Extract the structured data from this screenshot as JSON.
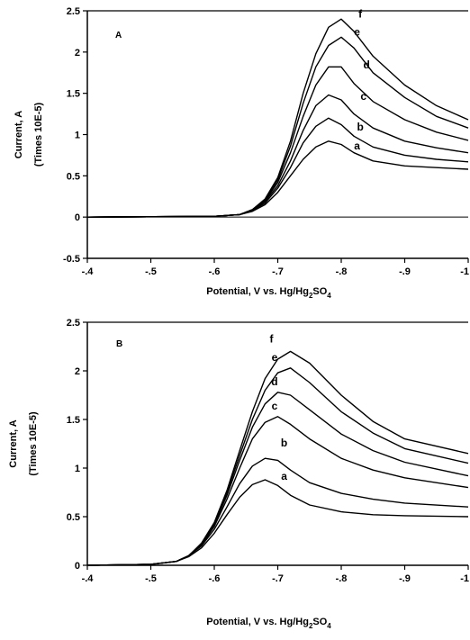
{
  "chart_data": [
    {
      "type": "line",
      "panel_label": "A",
      "xlabel_parts": [
        "Potential,  V vs. Hg/Hg",
        "2",
        "SO",
        "4"
      ],
      "ylabel": [
        "Current, A",
        "(Times 10E-5)"
      ],
      "xlim": [
        -0.4,
        -1.0
      ],
      "ylim": [
        -0.5,
        2.5
      ],
      "x_ticks": [
        -0.4,
        -0.5,
        -0.6,
        -0.7,
        -0.8,
        -0.9,
        -1.0
      ],
      "x_tick_labels": [
        "-.4",
        "-.5",
        "-.6",
        "-.7",
        "-.8",
        "-.9",
        "-1"
      ],
      "y_ticks": [
        -0.5,
        0,
        0.5,
        1,
        1.5,
        2,
        2.5
      ],
      "y_tick_labels": [
        "-0.5",
        "0",
        "0.5",
        "1",
        "1.5",
        "2",
        "2.5"
      ],
      "grid": false,
      "series": [
        {
          "name": "a",
          "x": [
            -0.4,
            -0.6,
            -0.64,
            -0.66,
            -0.68,
            -0.7,
            -0.72,
            -0.74,
            -0.76,
            -0.78,
            -0.8,
            -0.82,
            -0.85,
            -0.9,
            -0.95,
            -1.0
          ],
          "y": [
            0,
            0.01,
            0.03,
            0.07,
            0.15,
            0.3,
            0.5,
            0.7,
            0.85,
            0.92,
            0.88,
            0.78,
            0.68,
            0.62,
            0.6,
            0.58
          ]
        },
        {
          "name": "b",
          "x": [
            -0.4,
            -0.6,
            -0.64,
            -0.66,
            -0.68,
            -0.7,
            -0.72,
            -0.74,
            -0.76,
            -0.78,
            -0.8,
            -0.82,
            -0.85,
            -0.9,
            -0.95,
            -1.0
          ],
          "y": [
            0,
            0.01,
            0.03,
            0.08,
            0.17,
            0.35,
            0.6,
            0.9,
            1.1,
            1.2,
            1.12,
            0.98,
            0.85,
            0.75,
            0.7,
            0.67
          ]
        },
        {
          "name": "c",
          "x": [
            -0.4,
            -0.6,
            -0.64,
            -0.66,
            -0.68,
            -0.7,
            -0.72,
            -0.74,
            -0.76,
            -0.78,
            -0.8,
            -0.82,
            -0.85,
            -0.9,
            -0.95,
            -1.0
          ],
          "y": [
            0,
            0.01,
            0.03,
            0.08,
            0.19,
            0.38,
            0.68,
            1.05,
            1.35,
            1.48,
            1.42,
            1.25,
            1.08,
            0.92,
            0.84,
            0.78
          ]
        },
        {
          "name": "d",
          "x": [
            -0.4,
            -0.6,
            -0.64,
            -0.66,
            -0.68,
            -0.7,
            -0.72,
            -0.74,
            -0.76,
            -0.78,
            -0.8,
            -0.82,
            -0.85,
            -0.9,
            -0.95,
            -1.0
          ],
          "y": [
            0,
            0.01,
            0.03,
            0.09,
            0.2,
            0.42,
            0.78,
            1.22,
            1.6,
            1.82,
            1.82,
            1.62,
            1.4,
            1.18,
            1.03,
            0.93
          ]
        },
        {
          "name": "e",
          "x": [
            -0.4,
            -0.6,
            -0.64,
            -0.66,
            -0.68,
            -0.7,
            -0.72,
            -0.74,
            -0.76,
            -0.78,
            -0.8,
            -0.82,
            -0.85,
            -0.9,
            -0.95,
            -1.0
          ],
          "y": [
            0,
            0.01,
            0.03,
            0.09,
            0.21,
            0.45,
            0.86,
            1.38,
            1.82,
            2.08,
            2.18,
            2.05,
            1.75,
            1.45,
            1.22,
            1.08
          ]
        },
        {
          "name": "f",
          "x": [
            -0.4,
            -0.6,
            -0.64,
            -0.66,
            -0.68,
            -0.7,
            -0.72,
            -0.74,
            -0.76,
            -0.78,
            -0.8,
            -0.82,
            -0.85,
            -0.9,
            -0.95,
            -1.0
          ],
          "y": [
            0,
            0.01,
            0.03,
            0.09,
            0.22,
            0.48,
            0.92,
            1.5,
            1.98,
            2.3,
            2.4,
            2.25,
            1.95,
            1.6,
            1.35,
            1.18
          ]
        }
      ],
      "label_points": [
        {
          "name": "a",
          "x": -0.825,
          "y": 0.82
        },
        {
          "name": "b",
          "x": -0.83,
          "y": 1.05
        },
        {
          "name": "c",
          "x": -0.835,
          "y": 1.42
        },
        {
          "name": "d",
          "x": -0.84,
          "y": 1.8
        },
        {
          "name": "e",
          "x": -0.825,
          "y": 2.2
        },
        {
          "name": "f",
          "x": -0.83,
          "y": 2.42
        }
      ]
    },
    {
      "type": "line",
      "panel_label": "B",
      "xlabel_parts": [
        "Potential,  V vs. Hg/Hg",
        "2",
        "SO",
        "4"
      ],
      "ylabel": [
        "Current, A",
        "(Times 10E-5)"
      ],
      "xlim": [
        -0.4,
        -1.0
      ],
      "ylim": [
        0,
        2.5
      ],
      "x_ticks": [
        -0.4,
        -0.5,
        -0.6,
        -0.7,
        -0.8,
        -0.9,
        -1.0
      ],
      "x_tick_labels": [
        "-.4",
        "-.5",
        "-.6",
        "-.7",
        "-.8",
        "-.9",
        "-1"
      ],
      "y_ticks": [
        0,
        0.5,
        1,
        1.5,
        2,
        2.5
      ],
      "y_tick_labels": [
        "0",
        "0.5",
        "1",
        "1.5",
        "2",
        "2.5"
      ],
      "grid": false,
      "series": [
        {
          "name": "a",
          "x": [
            -0.4,
            -0.5,
            -0.54,
            -0.56,
            -0.58,
            -0.6,
            -0.62,
            -0.64,
            -0.66,
            -0.68,
            -0.7,
            -0.72,
            -0.75,
            -0.8,
            -0.85,
            -0.9,
            -1.0
          ],
          "y": [
            0,
            0.01,
            0.04,
            0.09,
            0.18,
            0.33,
            0.52,
            0.7,
            0.83,
            0.88,
            0.82,
            0.72,
            0.62,
            0.55,
            0.52,
            0.51,
            0.5
          ]
        },
        {
          "name": "b",
          "x": [
            -0.4,
            -0.5,
            -0.54,
            -0.56,
            -0.58,
            -0.6,
            -0.62,
            -0.64,
            -0.66,
            -0.68,
            -0.7,
            -0.72,
            -0.75,
            -0.8,
            -0.85,
            -0.9,
            -1.0
          ],
          "y": [
            0,
            0.01,
            0.04,
            0.1,
            0.2,
            0.37,
            0.6,
            0.84,
            1.02,
            1.1,
            1.08,
            0.98,
            0.85,
            0.74,
            0.68,
            0.64,
            0.6
          ]
        },
        {
          "name": "c",
          "x": [
            -0.4,
            -0.5,
            -0.54,
            -0.56,
            -0.58,
            -0.6,
            -0.62,
            -0.64,
            -0.66,
            -0.68,
            -0.7,
            -0.72,
            -0.75,
            -0.8,
            -0.85,
            -0.9,
            -1.0
          ],
          "y": [
            0,
            0.01,
            0.04,
            0.1,
            0.21,
            0.4,
            0.68,
            1.0,
            1.3,
            1.47,
            1.53,
            1.45,
            1.3,
            1.1,
            0.98,
            0.9,
            0.8
          ]
        },
        {
          "name": "d",
          "x": [
            -0.4,
            -0.5,
            -0.54,
            -0.56,
            -0.58,
            -0.6,
            -0.62,
            -0.64,
            -0.66,
            -0.68,
            -0.7,
            -0.72,
            -0.75,
            -0.8,
            -0.85,
            -0.9,
            -1.0
          ],
          "y": [
            0,
            0.01,
            0.04,
            0.1,
            0.22,
            0.42,
            0.72,
            1.08,
            1.42,
            1.66,
            1.78,
            1.75,
            1.6,
            1.35,
            1.18,
            1.06,
            0.92
          ]
        },
        {
          "name": "e",
          "x": [
            -0.4,
            -0.5,
            -0.54,
            -0.56,
            -0.58,
            -0.6,
            -0.62,
            -0.64,
            -0.66,
            -0.68,
            -0.7,
            -0.72,
            -0.75,
            -0.8,
            -0.85,
            -0.9,
            -1.0
          ],
          "y": [
            0,
            0.01,
            0.04,
            0.1,
            0.22,
            0.43,
            0.75,
            1.13,
            1.5,
            1.8,
            1.98,
            2.03,
            1.88,
            1.58,
            1.36,
            1.2,
            1.05
          ]
        },
        {
          "name": "f",
          "x": [
            -0.4,
            -0.5,
            -0.54,
            -0.56,
            -0.58,
            -0.6,
            -0.62,
            -0.64,
            -0.66,
            -0.68,
            -0.7,
            -0.72,
            -0.75,
            -0.8,
            -0.85,
            -0.9,
            -1.0
          ],
          "y": [
            0,
            0.01,
            0.04,
            0.1,
            0.23,
            0.44,
            0.77,
            1.18,
            1.58,
            1.92,
            2.12,
            2.2,
            2.08,
            1.75,
            1.48,
            1.3,
            1.15
          ]
        }
      ],
      "label_points": [
        {
          "name": "a",
          "x": -0.71,
          "y": 0.88
        },
        {
          "name": "b",
          "x": -0.71,
          "y": 1.22
        },
        {
          "name": "c",
          "x": -0.695,
          "y": 1.6
        },
        {
          "name": "d",
          "x": -0.695,
          "y": 1.85
        },
        {
          "name": "e",
          "x": -0.695,
          "y": 2.1
        },
        {
          "name": "f",
          "x": -0.69,
          "y": 2.29
        }
      ]
    }
  ]
}
